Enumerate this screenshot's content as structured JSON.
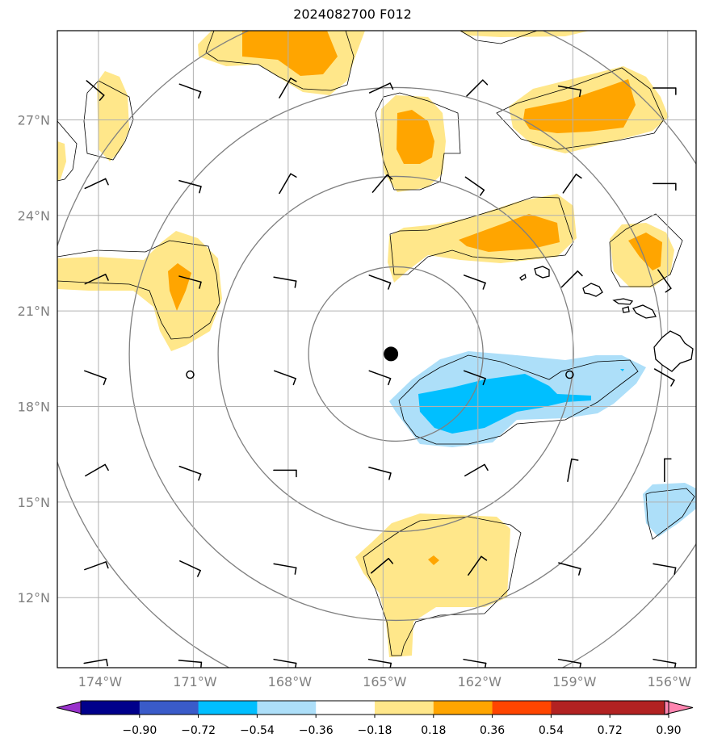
{
  "title": "2024082700 F012",
  "map": {
    "lon_range": [
      -175.3,
      -155.1
    ],
    "lat_range": [
      9.8,
      29.8
    ],
    "lat_ticks": [
      {
        "value": 27,
        "label": "27°N"
      },
      {
        "value": 24,
        "label": "24°N"
      },
      {
        "value": 21,
        "label": "21°N"
      },
      {
        "value": 18,
        "label": "18°N"
      },
      {
        "value": 15,
        "label": "15°N"
      },
      {
        "value": 12,
        "label": "12°N"
      }
    ],
    "lon_ticks": [
      {
        "value": -174,
        "label": "174°W"
      },
      {
        "value": -171,
        "label": "171°W"
      },
      {
        "value": -168,
        "label": "168°W"
      },
      {
        "value": -165,
        "label": "165°W"
      },
      {
        "value": -162,
        "label": "162°W"
      },
      {
        "value": -159,
        "label": "159°W"
      },
      {
        "value": -156,
        "label": "156°W"
      }
    ],
    "grid": true,
    "storm_center": {
      "lon": -164.75,
      "lat": 19.65
    },
    "range_rings": "concentric circles around storm center",
    "barb_grid_lons": [
      -175,
      -172,
      -169,
      -166,
      -163,
      -160,
      -157,
      -154
    ],
    "barb_grid_lats": [
      28,
      25,
      22,
      19,
      16,
      13,
      10
    ]
  },
  "colorbar": {
    "labels": [
      "−0.90",
      "−0.72",
      "−0.54",
      "−0.36",
      "−0.18",
      "0.18",
      "0.36",
      "0.54",
      "0.72",
      "0.90"
    ],
    "colors": [
      "#9932CC",
      "#00008B",
      "#3A5BC9",
      "#00BFFF",
      "#ADDFF9",
      "#FFFFFF",
      "#FFE78A",
      "#FFA500",
      "#FF4500",
      "#B22222",
      "#FF85B0"
    ]
  }
}
